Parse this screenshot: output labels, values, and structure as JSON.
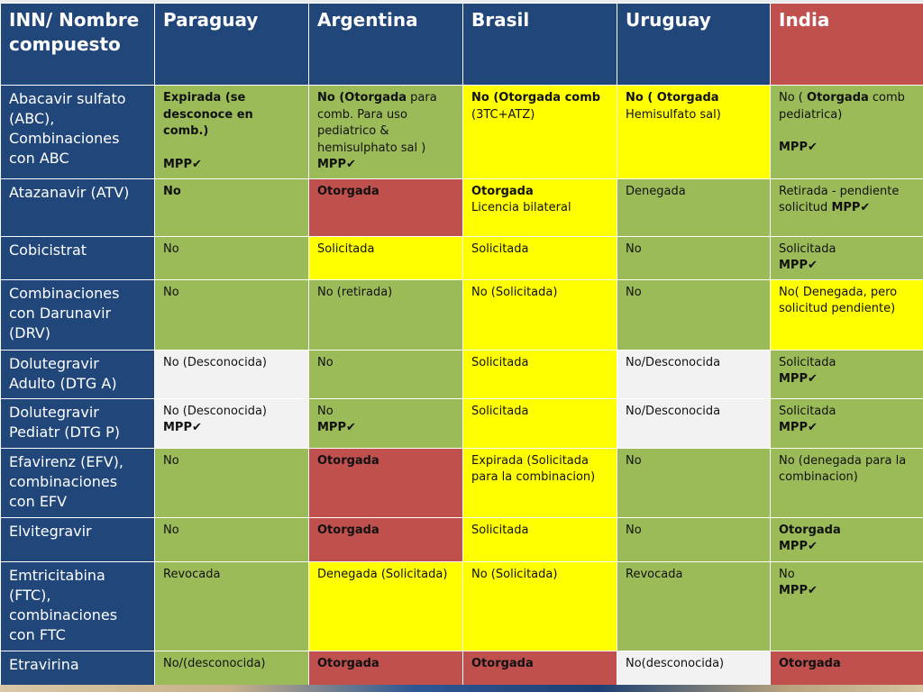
{
  "headers": {
    "inn": "INN/ Nombre compuesto",
    "paraguay": "Paraguay",
    "argentina": "Argentina",
    "brasil": "Brasil",
    "uruguay": "Uruguay",
    "india": "India"
  },
  "rows": [
    {
      "drug": "Abacavir sulfato (ABC), Combinaciones con ABC",
      "paraguay": {
        "a": "Expirada (se desconoce en comb.)",
        "mpp": "MPP✔"
      },
      "argentina": {
        "bold": "No (Otorgada",
        "rest": " para comb. Para uso pediatrico & hemisulphato sal )",
        "mpp": "MPP✔"
      },
      "brasil": {
        "bold": "No (Otorgada comb",
        "rest": "(3TC+ATZ)"
      },
      "uruguay": {
        "bold": "No ( Otorgada",
        "rest": "Hemisulfato sal)"
      },
      "india": {
        "pre": "No ( ",
        "bold": "Otorgada",
        "rest": " comb pediatrica)",
        "mpp": "MPP✔"
      }
    },
    {
      "drug": "Atazanavir (ATV)",
      "paraguay": "No",
      "argentina": "Otorgada",
      "brasil": {
        "bold": "Otorgada",
        "rest": "Licencia bilateral"
      },
      "uruguay": "Denegada",
      "india": {
        "rest": "Retirada - pendiente solicitud ",
        "mpp": "MPP✔"
      }
    },
    {
      "drug": "Cobicistrat",
      "paraguay": "No",
      "argentina": "Solicitada",
      "brasil": "Solicitada",
      "uruguay": "No",
      "india": {
        "rest": "Solicitada",
        "mpp": "MPP✔"
      }
    },
    {
      "drug": "Combinaciones con Darunavir (DRV)",
      "paraguay": "No",
      "argentina": "No (retirada)",
      "brasil": "No (Solicitada)",
      "uruguay": "No",
      "india": "No( Denegada, pero solicitud pendiente)"
    },
    {
      "drug": "Dolutegravir Adulto (DTG A)",
      "paraguay": "No (Desconocida)",
      "argentina": "No",
      "brasil": "Solicitada",
      "uruguay": "No/Desconocida",
      "india": {
        "rest": "Solicitada",
        "mpp": "MPP✔"
      }
    },
    {
      "drug": "Dolutegravir Pediatr (DTG P)",
      "paraguay": {
        "rest": "No (Desconocida)",
        "mpp": "MPP✔"
      },
      "argentina": {
        "rest": "No",
        "mpp": "MPP✔"
      },
      "brasil": "Solicitada",
      "uruguay": "No/Desconocida",
      "india": {
        "rest": "Solicitada",
        "mpp": "MPP✔"
      }
    },
    {
      "drug": "Efavirenz (EFV), combinaciones con EFV",
      "paraguay": "No",
      "argentina": "Otorgada",
      "brasil": "Expirada (Solicitada para la combinacion)",
      "uruguay": "No",
      "india": "No (denegada para la combinacion)"
    },
    {
      "drug": "Elvitegravir",
      "paraguay": "No",
      "argentina": "Otorgada",
      "brasil": "Solicitada",
      "uruguay": "No",
      "india": {
        "bold": "Otorgada",
        "mpp": "MPP✔"
      }
    },
    {
      "drug": "Emtricitabina (FTC), combinaciones con FTC",
      "paraguay": "Revocada",
      "argentina": "Denegada (Solicitada)",
      "brasil": "No (Solicitada)",
      "uruguay": "Revocada",
      "india": {
        "rest": "No",
        "mpp": "MPP✔"
      }
    },
    {
      "drug": "Etravirina",
      "paraguay": "No/(desconocida)",
      "argentina": "Otorgada",
      "brasil": "Otorgada",
      "uruguay": "No(desconocida)",
      "india": "Otorgada"
    }
  ],
  "colors": {
    "header_blue": "#20467a",
    "green": "#9bbb59",
    "yellow": "#ffff00",
    "red": "#c0504d",
    "white": "#f2f2f2"
  }
}
